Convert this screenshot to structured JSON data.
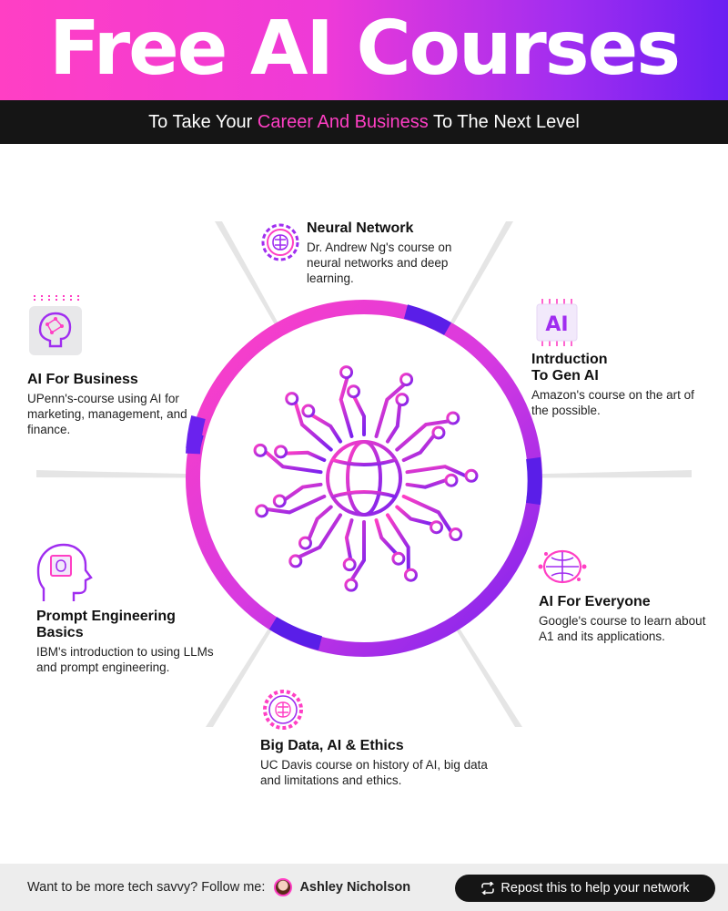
{
  "header": {
    "title": "Free AI Courses",
    "subtitle_pre": "To Take Your ",
    "subtitle_highlight": "Career And Business",
    "subtitle_post": " To The Next Level"
  },
  "courses": [
    {
      "title": "Neural Network",
      "desc": "Dr. Andrew Ng's course on neural networks and deep learning.",
      "icon": "brain-gear-icon"
    },
    {
      "title": "AI For Business",
      "desc": "UPenn's-course using AI for marketing, management, and finance.",
      "icon": "brain-chip-icon"
    },
    {
      "title": "Intrduction To Gen AI",
      "title_line1": "Intrduction",
      "title_line2": "To Gen AI",
      "desc": "Amazon's course on the art of the possible.",
      "icon": "ai-chip-icon"
    },
    {
      "title": "Prompt Engineering Basics",
      "title_line1": "Prompt Engineering",
      "title_line2": "Basics",
      "desc": "IBM's introduction to using LLMs and prompt engineering.",
      "icon": "head-chip-icon"
    },
    {
      "title": "AI For Everyone",
      "desc": "Google's course to learn about A1 and its applications.",
      "icon": "brain-circuit-icon"
    },
    {
      "title": "Big Data, AI & Ethics",
      "desc": "UC Davis course on history of AI, big data and limitations and ethics.",
      "icon": "gear-brain-icon"
    }
  ],
  "center": {
    "icon": "globe-circuit-icon"
  },
  "ai_chip_label": "AI",
  "footer": {
    "follow_text": "Want to be more tech savvy? Follow me:",
    "author": "Ashley Nicholson",
    "repost_label": "Repost this to help your network"
  },
  "colors": {
    "pink": "#ff3fc4",
    "purple": "#6a1ff2",
    "dark": "#151515"
  }
}
